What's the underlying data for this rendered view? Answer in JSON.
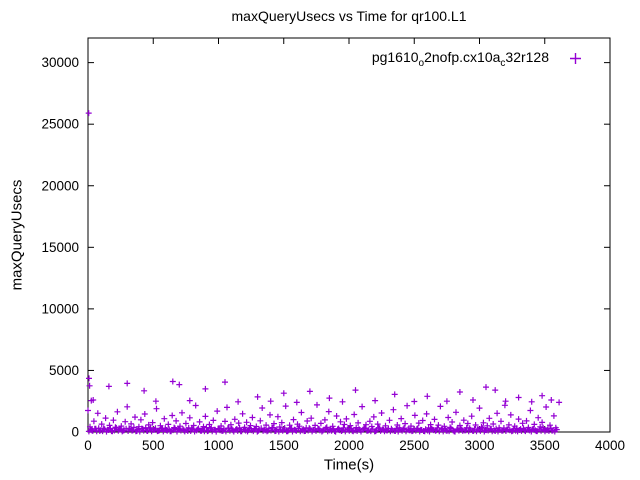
{
  "chart_data": {
    "type": "scatter",
    "title": "maxQueryUsecs vs Time for qr100.L1",
    "xlabel": "Time(s)",
    "ylabel": "maxQueryUsecs",
    "xlim": [
      0,
      4000
    ],
    "ylim": [
      0,
      32000
    ],
    "xticks": [
      0,
      500,
      1000,
      1500,
      2000,
      2500,
      3000,
      3500,
      4000
    ],
    "yticks": [
      0,
      5000,
      10000,
      15000,
      20000,
      25000,
      30000
    ],
    "grid": false,
    "marker": "plus",
    "marker_color": "#9400d3",
    "legend": {
      "position": "top-right",
      "segments": [
        {
          "t": "pg1610"
        },
        {
          "t": "o",
          "sub": true
        },
        {
          "t": "2nofp.cx10a"
        },
        {
          "t": "c",
          "sub": true
        },
        {
          "t": "32r128"
        }
      ]
    },
    "series": [
      {
        "name": "pg1610_o2nofp.cx10a_c32r128",
        "bands": [
          {
            "x_start": 0,
            "x_step": 15,
            "y": [
              1750,
              420,
              130,
              880,
              260,
              1520,
              90,
              640,
              310,
              1130,
              180,
              540,
              70,
              960,
              390,
              1640,
              220,
              480,
              120,
              840,
              2050,
              300,
              660,
              150,
              1210,
              80,
              430,
              990,
              250,
              1460,
              110,
              580,
              330,
              760,
              190,
              1890,
              95,
              510,
              270,
              1080,
              160,
              620,
              60,
              1340,
              360,
              900,
              230,
              470,
              1560,
              140,
              690,
              85,
              1150,
              290,
              530,
              2150,
              200,
              820,
              105,
              440,
              1270,
              75,
              610,
              350,
              940,
              170,
              1700,
              260,
              490,
              115,
              860,
              2000,
              320,
              590,
              135,
              1030,
              240,
              720,
              65,
              1480,
              370,
              790,
              155,
              520,
              1180,
              280,
              450,
              100,
              910,
              1950,
              210,
              560,
              125,
              1390,
              340,
              680,
              90,
              1240,
              410,
              760,
              185,
              2100,
              60,
              550,
              295,
              1010,
              145,
              630,
              470,
              1580,
              225,
              80,
              890,
              315,
              1120,
              175,
              540,
              2200,
              250,
              700,
              120,
              980,
              385,
              1660,
              205,
              460,
              70,
              1300,
              275,
              830,
              150,
              610,
              1060,
              235,
              520,
              95,
              1420,
              355,
              740,
              165,
              2060,
              285,
              590,
              110,
              870,
              445,
              1230,
              75,
              640,
              300,
              1540,
              190,
              505,
              130,
              950,
              265,
              1810,
              85,
              570,
              345,
              1090,
              215,
              680,
              2140,
              155,
              480,
              105,
              1350,
              255,
              720,
              170,
              930,
              65,
              1470,
              330,
              600,
              195,
              1020,
              140,
              560,
              2080,
              290,
              460,
              115,
              1180,
              375,
              810,
              60,
              1600,
              245,
              530,
              180,
              960,
              135,
              690,
              310,
              1280,
              90,
              570,
              225,
              1940,
              405,
              750,
              160,
              500,
              1110,
              270,
              650,
              80,
              1520,
              340,
              870,
              125,
              2170,
              200,
              580,
              1390,
              100,
              470,
              305,
              1050,
              235,
              710,
              145,
              900,
              365,
              1750,
              215,
              620,
              70,
              1160,
              420,
              780,
              185,
              2030,
              280,
              550,
              110,
              1310,
              350
            ]
          },
          {
            "x_start": 7,
            "x_step": 15,
            "y": [
              45,
              180,
              90,
              260,
              55,
              310,
              140,
              75,
              220,
              35,
              160,
              285,
              60,
              120,
              330,
              95,
              205,
              50,
              150,
              270,
              80,
              240,
              110,
              370,
              65,
              195,
              40,
              280,
              115,
              350,
              85,
              230,
              55,
              170,
              300,
              70,
              135,
              250,
              45,
              320,
              100,
              210,
              60,
              155,
              290,
              38,
              185,
              125,
              240,
              52,
              165,
              335,
              78,
              215,
              42,
              130,
              295,
              98,
              175,
              58,
              360,
              112,
              245,
              68,
              190,
              36,
              275,
              145,
              82,
              225,
              48,
              305,
              105,
              260,
              40,
              175,
              88,
              340,
              62,
              200,
              125,
              46,
              280,
              158,
              72,
              235,
              34,
              190,
              310,
              92,
              148,
              54,
              265,
              118,
              355,
              76,
              210,
              44,
              170,
              96,
              325,
              64,
              140,
              255,
              38,
              182,
              108,
              290,
              56,
              146,
              74,
              345,
              120,
              232,
              48,
              168,
              86,
              268,
              132,
              40,
              185,
              302,
              66,
              142,
              94,
              250,
              36,
              215,
              158,
              78,
              330,
              50,
              196,
              104,
              272,
              60,
              138,
              84,
              238,
              42,
              176,
              315,
              98,
              152,
              70,
              228,
              46,
              162,
              340,
              88,
              198,
              56,
              126,
              286,
              64,
              150,
              102,
              242,
              38,
              178,
              94,
              318,
              58,
              206,
              134,
              72,
              256,
              110,
              295,
              48,
              164,
              82,
              218,
              122,
              42,
              262,
              154,
              96,
              336,
              68,
              188,
              52,
              234,
              106,
              76,
              282,
              146,
              34,
              202,
              114,
              248,
              90,
              130,
              350,
              62,
              174,
              100,
              246,
              54,
              192,
              86,
              308,
              44,
              158,
              118,
              226,
              66,
              136,
              278,
              50,
              170,
              98,
              322,
              80,
              214,
              142,
              58,
              236,
              112,
              46,
              166,
              92,
              300,
              74,
              184,
              128,
              38,
              254,
              148,
              70,
              220,
              104,
              342,
              60,
              156,
              88,
              264,
              124,
              40,
              196
            ]
          }
        ],
        "outliers": [
          [
            5,
            25900
          ],
          [
            8,
            4350
          ],
          [
            12,
            3750
          ],
          [
            25,
            2550
          ],
          [
            40,
            2600
          ],
          [
            160,
            3700
          ],
          [
            300,
            3950
          ],
          [
            430,
            3350
          ],
          [
            520,
            2500
          ],
          [
            650,
            4100
          ],
          [
            700,
            3850
          ],
          [
            780,
            2550
          ],
          [
            900,
            3500
          ],
          [
            1050,
            4050
          ],
          [
            1150,
            2450
          ],
          [
            1300,
            2850
          ],
          [
            1400,
            2500
          ],
          [
            1500,
            3150
          ],
          [
            1600,
            2400
          ],
          [
            1700,
            3300
          ],
          [
            1850,
            2750
          ],
          [
            1950,
            2450
          ],
          [
            2050,
            3400
          ],
          [
            2200,
            2550
          ],
          [
            2350,
            3050
          ],
          [
            2500,
            2480
          ],
          [
            2600,
            2900
          ],
          [
            2750,
            2500
          ],
          [
            2850,
            3250
          ],
          [
            2950,
            2600
          ],
          [
            3050,
            3650
          ],
          [
            3120,
            3400
          ],
          [
            3200,
            2500
          ],
          [
            3300,
            2800
          ],
          [
            3400,
            2450
          ],
          [
            3480,
            2950
          ],
          [
            3550,
            2600
          ],
          [
            3610,
            2400
          ]
        ]
      }
    ]
  }
}
